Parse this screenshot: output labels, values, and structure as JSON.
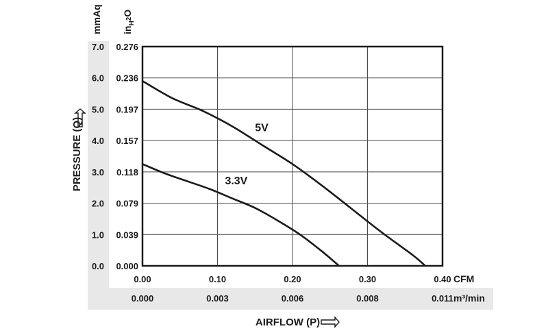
{
  "chart_data": {
    "type": "line",
    "title": "",
    "xlabel": "AIRFLOW (P)",
    "ylabel": "PRESSURE (Q)",
    "xlim": [
      0,
      0.4
    ],
    "ylim": [
      0,
      7.0
    ],
    "grid": true,
    "x_unit_primary": "CFM",
    "x_unit_secondary": "m³/min",
    "y_unit_primary": "mmAq",
    "y_unit_secondary": "inH2O",
    "x_ticks_primary": [
      "0.00",
      "0.10",
      "0.20",
      "0.30",
      "0.40"
    ],
    "x_ticks_secondary": [
      "0.000",
      "0.003",
      "0.006",
      "0.008",
      "0.011"
    ],
    "y_ticks_primary": [
      "0.0",
      "1.0",
      "2.0",
      "3.0",
      "4.0",
      "5.0",
      "6.0",
      "7.0"
    ],
    "y_ticks_secondary": [
      "0.000",
      "0.039",
      "0.079",
      "0.118",
      "0.157",
      "0.197",
      "0.236",
      "0.276"
    ],
    "series": [
      {
        "name": "5V",
        "x": [
          0.0,
          0.04,
          0.08,
          0.12,
          0.16,
          0.2,
          0.24,
          0.28,
          0.32,
          0.36,
          0.377
        ],
        "y": [
          5.9,
          5.35,
          4.95,
          4.45,
          3.85,
          3.25,
          2.55,
          1.8,
          1.05,
          0.35,
          0.0
        ]
      },
      {
        "name": "3.3V",
        "x": [
          0.0,
          0.03,
          0.06,
          0.09,
          0.12,
          0.15,
          0.18,
          0.21,
          0.24,
          0.262
        ],
        "y": [
          3.25,
          2.95,
          2.7,
          2.45,
          2.15,
          1.85,
          1.45,
          1.0,
          0.45,
          0.0
        ]
      }
    ],
    "annotations": [
      {
        "text": "5V",
        "x": 0.15,
        "y": 4.3
      },
      {
        "text": "3.3V",
        "x": 0.11,
        "y": 2.6
      }
    ]
  }
}
